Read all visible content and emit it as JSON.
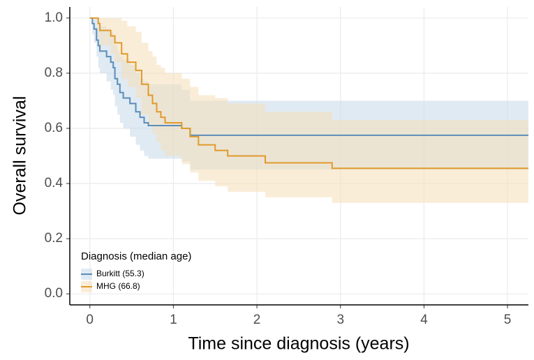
{
  "chart_data": {
    "type": "step",
    "xlabel": "Time since diagnosis (years)",
    "ylabel": "Overall survival",
    "xlim": [
      -0.24,
      5.25
    ],
    "ylim": [
      -0.04,
      1.04
    ],
    "xticks": [
      0,
      1,
      2,
      3,
      4,
      5
    ],
    "yticks": [
      {
        "value": 0,
        "label": "0.0"
      },
      0.2,
      0.4,
      0.6,
      0.8,
      {
        "value": 1,
        "label": "1.0"
      }
    ],
    "grid": true,
    "legend_title": "Diagnosis (median age)",
    "legend_position": "bottom-left",
    "series": [
      {
        "name": "Burkitt (55.3)",
        "color": "#5b8db8",
        "band_color": "#c6d9ea",
        "x": [
          0,
          0.03,
          0.05,
          0.08,
          0.1,
          0.12,
          0.2,
          0.25,
          0.28,
          0.3,
          0.33,
          0.36,
          0.4,
          0.48,
          0.55,
          0.6,
          0.65,
          0.7,
          1.1,
          1.2,
          5.25
        ],
        "values": [
          1,
          0.98,
          0.96,
          0.92,
          0.9,
          0.88,
          0.86,
          0.84,
          0.82,
          0.78,
          0.76,
          0.73,
          0.71,
          0.69,
          0.66,
          0.64,
          0.62,
          0.61,
          0.6,
          0.575,
          0.575
        ],
        "upper": [
          1,
          1,
          1,
          1,
          0.99,
          0.97,
          0.96,
          0.95,
          0.93,
          0.9,
          0.88,
          0.86,
          0.85,
          0.83,
          0.8,
          0.78,
          0.77,
          0.76,
          0.74,
          0.7,
          0.7
        ],
        "lower": [
          1,
          0.94,
          0.91,
          0.86,
          0.82,
          0.8,
          0.77,
          0.74,
          0.72,
          0.68,
          0.65,
          0.62,
          0.6,
          0.57,
          0.54,
          0.52,
          0.5,
          0.49,
          0.48,
          0.45,
          0.45
        ]
      },
      {
        "name": "MHG (66.8)",
        "color": "#e09a2b",
        "band_color": "#f5deb8",
        "x": [
          0,
          0.1,
          0.12,
          0.25,
          0.3,
          0.38,
          0.45,
          0.55,
          0.62,
          0.7,
          0.75,
          0.8,
          0.85,
          0.9,
          1.1,
          1.2,
          1.3,
          1.5,
          1.65,
          2.1,
          2.9,
          5.25
        ],
        "values": [
          1,
          0.98,
          0.955,
          0.935,
          0.91,
          0.87,
          0.84,
          0.81,
          0.76,
          0.72,
          0.69,
          0.66,
          0.64,
          0.62,
          0.6,
          0.57,
          0.54,
          0.52,
          0.5,
          0.475,
          0.455,
          0.455
        ],
        "upper": [
          1,
          1,
          1,
          1,
          1,
          0.99,
          0.97,
          0.95,
          0.91,
          0.88,
          0.86,
          0.83,
          0.82,
          0.8,
          0.78,
          0.75,
          0.72,
          0.71,
          0.69,
          0.66,
          0.63,
          0.62
        ],
        "lower": [
          1,
          0.93,
          0.9,
          0.87,
          0.84,
          0.78,
          0.75,
          0.71,
          0.65,
          0.61,
          0.58,
          0.55,
          0.52,
          0.5,
          0.47,
          0.44,
          0.41,
          0.39,
          0.37,
          0.35,
          0.33,
          0.33
        ]
      }
    ]
  }
}
